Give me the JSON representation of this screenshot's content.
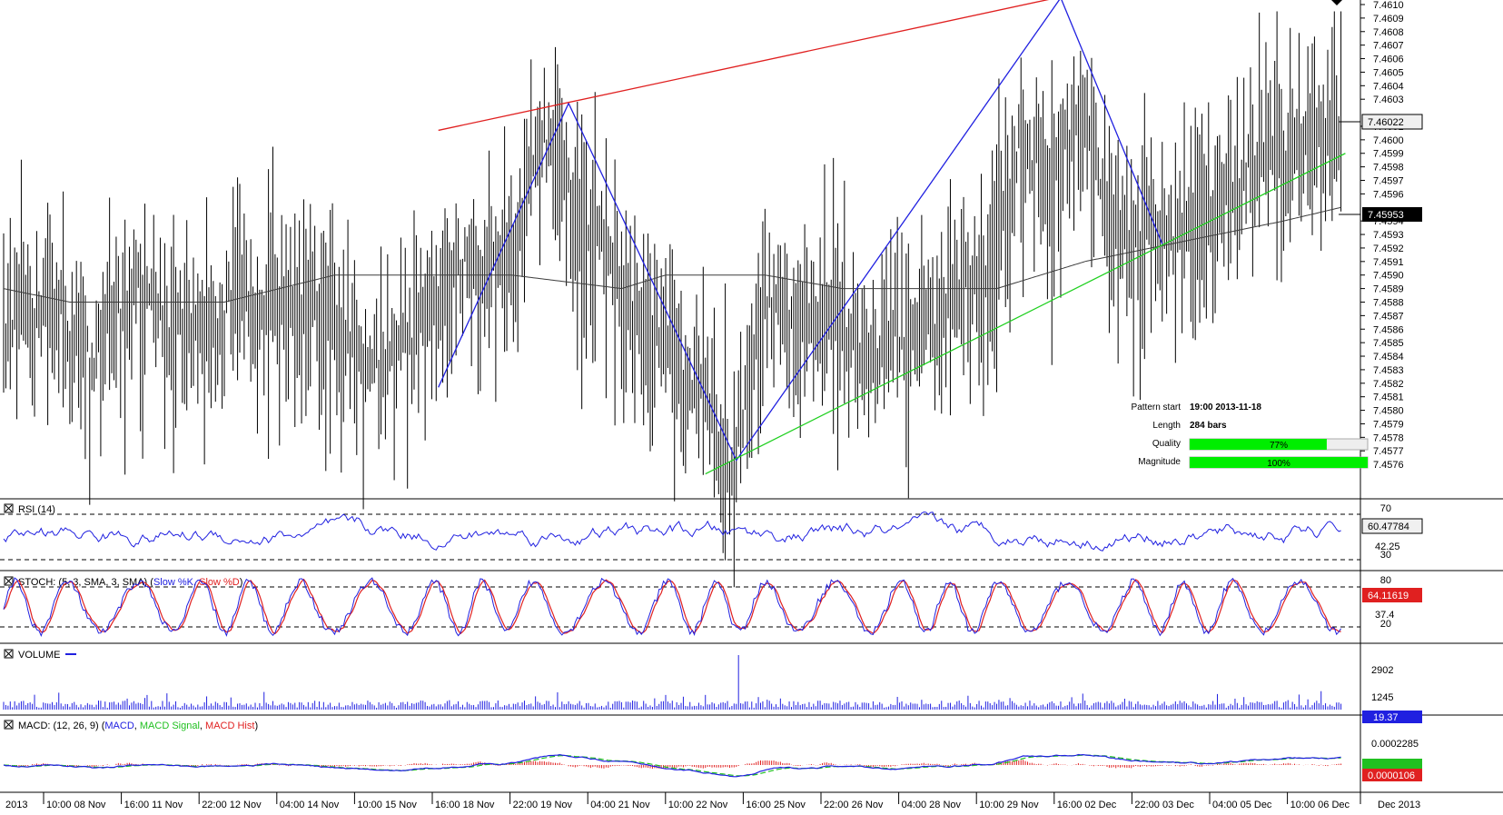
{
  "pattern_info": {
    "start_label": "Pattern start",
    "start_value": "19:00 2013-11-18",
    "length_label": "Length",
    "length_value": "284 bars",
    "quality_label": "Quality",
    "quality_value": "77%",
    "quality_fraction": 0.77,
    "magnitude_label": "Magnitude",
    "magnitude_value": "100%",
    "magnitude_fraction": 1.0
  },
  "panels": {
    "rsi": {
      "title": "RSI (14)",
      "level_hi": "70",
      "level_lo": "30",
      "last_value": "60.47784",
      "mid_label": "42.25"
    },
    "stoch": {
      "title_prefix": "STOCH: (5, 3, SMA, 3, SMA)",
      "k_label": "Slow %K",
      "d_label": "Slow %D",
      "level_hi": "80",
      "level_lo": "20",
      "last_value": "64.11619",
      "mid_label": "37.4"
    },
    "volume": {
      "title": "VOLUME",
      "tick_hi": "2902",
      "tick_mid": "1245",
      "last_value": "19.37"
    },
    "macd": {
      "title_prefix": "MACD: (12, 26, 9)",
      "macd_label": "MACD",
      "signal_label": "MACD Signal",
      "hist_label": "MACD Hist",
      "tick_hi": "0.0002285",
      "last_value": "0.0000106"
    }
  },
  "colors": {
    "bars": "#000000",
    "ma": "#3c3c3c",
    "zigzag": "#2020e0",
    "upper_line": "#e02020",
    "lower_line": "#20d020",
    "rsi": "#2020e0",
    "stoch_k": "#2020e0",
    "stoch_d": "#e02020",
    "volume": "#2020e0",
    "macd": "#2020e0",
    "signal": "#20c020",
    "hist": "#e02020",
    "quality_bar": "#00ee00"
  },
  "chart_data": {
    "type": "ohlc",
    "symbol_price_current": "7.46022",
    "ma_current": "7.45953",
    "ylim": [
      7.4575,
      7.461
    ],
    "y_ticks": [
      "7.4610",
      "7.4609",
      "7.4608",
      "7.4607",
      "7.4606",
      "7.4605",
      "7.4604",
      "7.4603",
      "7.4601",
      "7.4600",
      "7.4599",
      "7.4598",
      "7.4597",
      "7.4596",
      "7.4594",
      "7.4593",
      "7.4592",
      "7.4591",
      "7.4590",
      "7.4589",
      "7.4588",
      "7.4587",
      "7.4586",
      "7.4585",
      "7.4584",
      "7.4583",
      "7.4582",
      "7.4581",
      "7.4580",
      "7.4579",
      "7.4578",
      "7.4577",
      "7.4576"
    ],
    "x_ticks": [
      "2013",
      "10:00 08 Nov",
      "16:00 11 Nov",
      "22:00 12 Nov",
      "04:00 14 Nov",
      "10:00 15 Nov",
      "16:00 18 Nov",
      "22:00 19 Nov",
      "04:00 21 Nov",
      "10:00 22 Nov",
      "16:00 25 Nov",
      "22:00 26 Nov",
      "04:00 28 Nov",
      "10:00 29 Nov",
      "16:00 02 Dec",
      "22:00 03 Dec",
      "04:00 05 Dec",
      "10:00 06 Dec",
      "Dec 2013"
    ],
    "price_anchors": [
      [
        0,
        7.4586
      ],
      [
        20,
        7.4589
      ],
      [
        40,
        7.4584
      ],
      [
        60,
        7.459
      ],
      [
        80,
        7.4586
      ],
      [
        100,
        7.4588
      ],
      [
        120,
        7.459
      ],
      [
        140,
        7.4588
      ],
      [
        160,
        7.4585
      ],
      [
        175,
        7.4584
      ],
      [
        190,
        7.4588
      ],
      [
        210,
        7.4591
      ],
      [
        230,
        7.4593
      ],
      [
        245,
        7.4601
      ],
      [
        260,
        7.4595
      ],
      [
        275,
        7.4592
      ],
      [
        290,
        7.4587
      ],
      [
        305,
        7.4585
      ],
      [
        320,
        7.4581
      ],
      [
        330,
        7.4577
      ],
      [
        345,
        7.4589
      ],
      [
        360,
        7.4586
      ],
      [
        375,
        7.4589
      ],
      [
        390,
        7.4585
      ],
      [
        410,
        7.4587
      ],
      [
        425,
        7.4588
      ],
      [
        445,
        7.459
      ],
      [
        460,
        7.46
      ],
      [
        475,
        7.4598
      ],
      [
        480,
        7.46
      ],
      [
        490,
        7.4602
      ],
      [
        500,
        7.4596
      ],
      [
        510,
        7.4594
      ],
      [
        520,
        7.4595
      ],
      [
        530,
        7.4593
      ],
      [
        545,
        7.4595
      ],
      [
        560,
        7.4598
      ],
      [
        575,
        7.46
      ],
      [
        590,
        7.4601
      ],
      [
        605,
        7.4602
      ]
    ],
    "ma_anchors": [
      [
        0,
        7.4589
      ],
      [
        30,
        7.4588
      ],
      [
        60,
        7.4588
      ],
      [
        100,
        7.4588
      ],
      [
        150,
        7.459
      ],
      [
        200,
        7.459
      ],
      [
        230,
        7.459
      ],
      [
        280,
        7.4589
      ],
      [
        300,
        7.459
      ],
      [
        320,
        7.459
      ],
      [
        345,
        7.459
      ],
      [
        380,
        7.4589
      ],
      [
        420,
        7.4589
      ],
      [
        450,
        7.4589
      ],
      [
        470,
        7.459
      ],
      [
        490,
        7.4591
      ],
      [
        520,
        7.4592
      ],
      [
        550,
        7.4593
      ],
      [
        580,
        7.4594
      ],
      [
        606,
        7.4595
      ]
    ],
    "zigzag": [
      [
        197,
        7.45817
      ],
      [
        256,
        7.46027
      ],
      [
        332,
        7.45763
      ],
      [
        479,
        7.46105
      ],
      [
        525,
        7.45923
      ]
    ],
    "upper_line": [
      [
        197,
        7.46007
      ],
      [
        520,
        7.4612
      ]
    ],
    "lower_line": [
      [
        318,
        7.45753
      ],
      [
        608,
        7.4599
      ]
    ],
    "bar_count": 607
  }
}
